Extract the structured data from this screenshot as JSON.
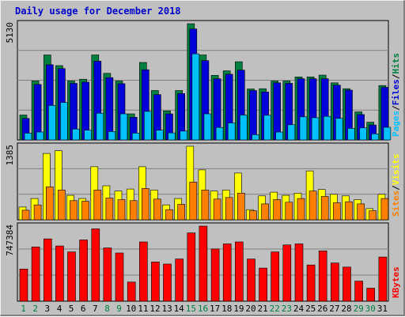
{
  "title": "Daily usage for December 2018",
  "colors": {
    "hits": "#008040",
    "files": "#0000d8",
    "pages": "#00c0ff",
    "visits": "#ffff00",
    "sites": "#ff8000",
    "kbytes": "#ff0000",
    "weekday": "#000000",
    "weekend": "#008040",
    "chart_bg": "#c0c0c0",
    "title": "#0000cc"
  },
  "chart_data": [
    {
      "type": "bar",
      "categories": [
        "1",
        "2",
        "3",
        "4",
        "5",
        "6",
        "7",
        "8",
        "9",
        "10",
        "11",
        "12",
        "13",
        "14",
        "15",
        "16",
        "17",
        "18",
        "19",
        "20",
        "21",
        "22",
        "23",
        "24",
        "25",
        "26",
        "27",
        "28",
        "29",
        "30",
        "31"
      ],
      "weekend_days": [
        "1",
        "2",
        "8",
        "9",
        "15",
        "16",
        "22",
        "23",
        "29",
        "30"
      ],
      "ymax_label": "5130",
      "ylim": [
        0,
        5130
      ],
      "right_label": [
        "Pages",
        "/",
        "Files",
        "/",
        "Hits"
      ],
      "series": [
        {
          "name": "Hits",
          "values": [
            1100,
            2600,
            3750,
            3280,
            2600,
            2680,
            3750,
            2940,
            2600,
            1150,
            3420,
            2180,
            1280,
            2180,
            5130,
            3750,
            2850,
            3050,
            3450,
            2250,
            2260,
            2600,
            2600,
            2780,
            2780,
            2860,
            2520,
            2260,
            1240,
            780,
            2400
          ]
        },
        {
          "name": "Files",
          "values": [
            950,
            2450,
            3320,
            3150,
            2500,
            2550,
            3480,
            2750,
            2480,
            1000,
            3100,
            2000,
            1150,
            2050,
            4900,
            3500,
            2700,
            2900,
            3080,
            2180,
            2120,
            2520,
            2500,
            2700,
            2700,
            2700,
            2420,
            2200,
            1120,
            660,
            2320
          ]
        },
        {
          "name": "Pages",
          "values": [
            300,
            350,
            1520,
            1650,
            480,
            430,
            1180,
            370,
            1150,
            300,
            1260,
            430,
            310,
            390,
            3800,
            1150,
            550,
            750,
            1100,
            230,
            1090,
            350,
            670,
            1020,
            980,
            1040,
            950,
            510,
            530,
            270,
            560
          ]
        }
      ]
    },
    {
      "type": "bar",
      "categories": [
        "1",
        "2",
        "3",
        "4",
        "5",
        "6",
        "7",
        "8",
        "9",
        "10",
        "11",
        "12",
        "13",
        "14",
        "15",
        "16",
        "17",
        "18",
        "19",
        "20",
        "21",
        "22",
        "23",
        "24",
        "25",
        "26",
        "27",
        "28",
        "29",
        "30",
        "31"
      ],
      "ymax_label": "1385",
      "ylim": [
        0,
        1385
      ],
      "right_label": [
        "Sites",
        "/",
        "Visits"
      ],
      "series": [
        {
          "name": "Visits",
          "values": [
            240,
            400,
            1250,
            1300,
            460,
            400,
            1000,
            640,
            540,
            580,
            1000,
            560,
            280,
            400,
            1385,
            940,
            540,
            560,
            880,
            190,
            450,
            520,
            460,
            500,
            920,
            570,
            480,
            450,
            380,
            210,
            480
          ]
        },
        {
          "name": "Sites",
          "values": [
            180,
            280,
            620,
            560,
            360,
            350,
            560,
            410,
            380,
            360,
            590,
            390,
            190,
            290,
            710,
            560,
            390,
            420,
            500,
            170,
            300,
            380,
            330,
            400,
            540,
            440,
            320,
            340,
            300,
            170,
            400
          ]
        }
      ]
    },
    {
      "type": "bar",
      "categories": [
        "1",
        "2",
        "3",
        "4",
        "5",
        "6",
        "7",
        "8",
        "9",
        "10",
        "11",
        "12",
        "13",
        "14",
        "15",
        "16",
        "17",
        "18",
        "19",
        "20",
        "21",
        "22",
        "23",
        "24",
        "25",
        "26",
        "27",
        "28",
        "29",
        "30",
        "31"
      ],
      "ymax_label": "747384",
      "ylim": [
        0,
        747384
      ],
      "right_label": [
        "KBytes"
      ],
      "series": [
        {
          "name": "KBytes",
          "values": [
            320000,
            540000,
            620000,
            550000,
            490000,
            610000,
            720000,
            530000,
            480000,
            190000,
            590000,
            390000,
            370000,
            420000,
            680000,
            747384,
            520000,
            570000,
            590000,
            420000,
            330000,
            490000,
            560000,
            570000,
            360000,
            500000,
            380000,
            340000,
            200000,
            130000,
            440000
          ]
        }
      ]
    }
  ]
}
